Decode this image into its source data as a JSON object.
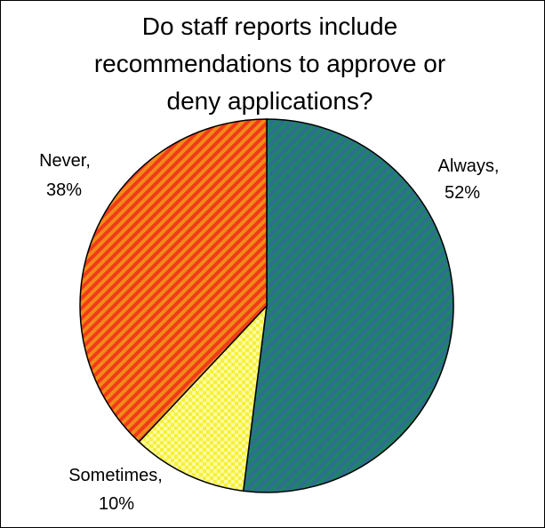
{
  "chart_data": {
    "type": "pie",
    "title": [
      "Do staff reports include",
      "recommendations to approve or",
      "deny applications?"
    ],
    "slices": [
      {
        "label": "Always,",
        "value": 52,
        "value_text": "52%",
        "color": "#1e8466",
        "stripe": "#2e6e92",
        "pattern": "diagonal-stripes"
      },
      {
        "label": "Sometimes,",
        "value": 10,
        "value_text": "10%",
        "color": "#f6f03a",
        "stripe": "#fbfba0",
        "pattern": "checker"
      },
      {
        "label": "Never,",
        "value": 38,
        "value_text": "38%",
        "color": "#f23a1a",
        "stripe": "#f08a18",
        "pattern": "diagonal-stripes"
      }
    ],
    "start": "12 o'clock",
    "direction": "clockwise",
    "legend": "none"
  }
}
